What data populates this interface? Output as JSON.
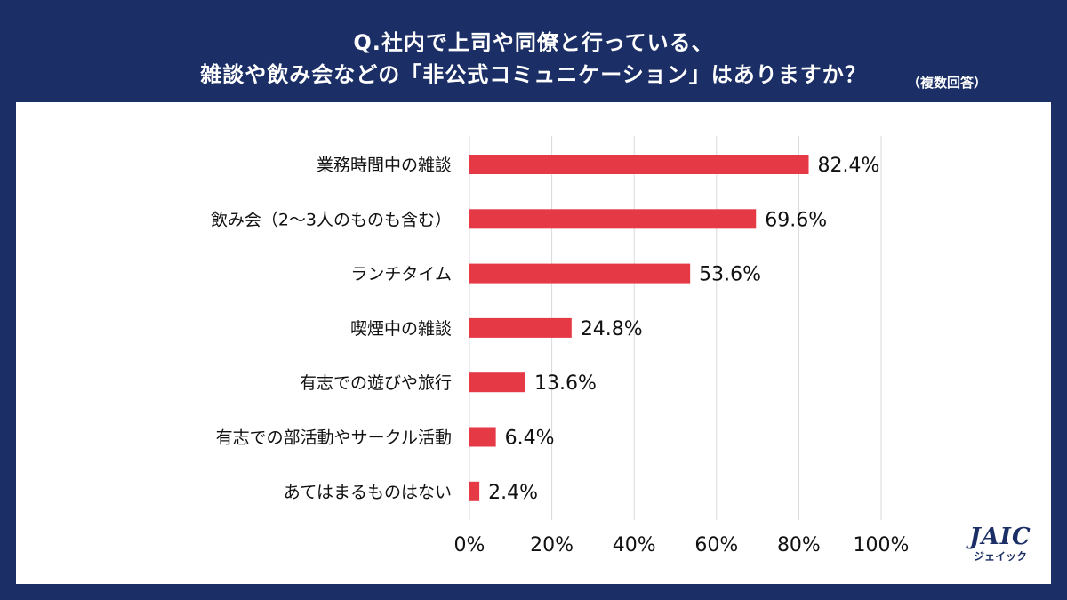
{
  "header": {
    "line1": "Q.社内で上司や同僚と行っている、",
    "line2": "雑談や飲み会などの「非公式コミュニケーション」はありますか？",
    "note": "（複数回答）"
  },
  "logo": {
    "main": "JAIC",
    "sub": "ジェイック"
  },
  "colors": {
    "bar": "#e63946",
    "background": "#1b2f66",
    "grid": "#d9d9d9"
  },
  "chart_data": {
    "type": "bar",
    "orientation": "horizontal",
    "title": "Q.社内で上司や同僚と行っている、雑談や飲み会などの「非公式コミュニケーション」はありますか？（複数回答）",
    "categories": [
      "業務時間中の雑談",
      "飲み会（2～3人のものも含む）",
      "ランチタイム",
      "喫煙中の雑談",
      "有志での遊びや旅行",
      "有志での部活動やサークル活動",
      "あてはまるものはない"
    ],
    "values": [
      82.4,
      69.6,
      53.6,
      24.8,
      13.6,
      6.4,
      2.4
    ],
    "value_labels": [
      "82.4%",
      "69.6%",
      "53.6%",
      "24.8%",
      "13.6%",
      "6.4%",
      "2.4%"
    ],
    "xlim": [
      0,
      100
    ],
    "xticks": [
      0,
      20,
      40,
      60,
      80,
      100
    ],
    "xtick_labels": [
      "0%",
      "20%",
      "40%",
      "60%",
      "80%",
      "100%"
    ],
    "grid": true,
    "xlabel": "",
    "ylabel": ""
  }
}
